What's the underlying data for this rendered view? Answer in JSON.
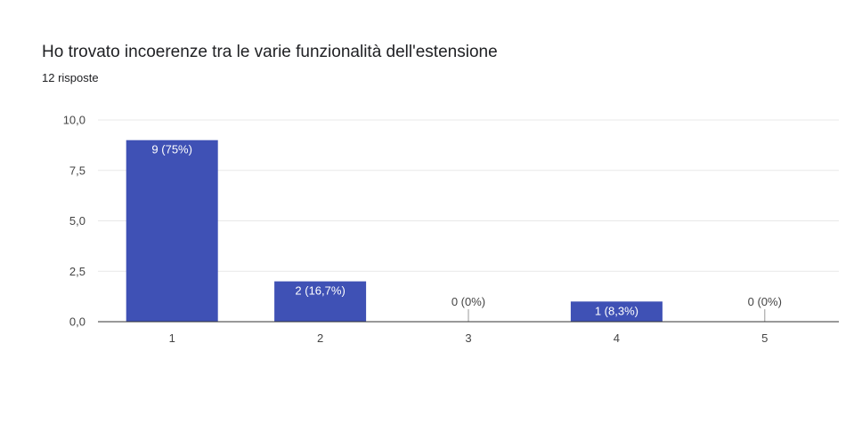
{
  "chart_data": {
    "type": "bar",
    "title": "Ho trovato incoerenze tra le varie funzionalità dell'estensione",
    "subtitle": "12 risposte",
    "categories": [
      "1",
      "2",
      "3",
      "4",
      "5"
    ],
    "values": [
      9,
      2,
      0,
      1,
      0
    ],
    "data_labels": [
      "9 (75%)",
      "2 (16,7%)",
      "0 (0%)",
      "1 (8,3%)",
      "0 (0%)"
    ],
    "y_ticks": [
      "0,0",
      "2,5",
      "5,0",
      "7,5",
      "10,0"
    ],
    "ylim": [
      0,
      10
    ],
    "grid": true,
    "legend": "none",
    "colors": {
      "bar": "#3f51b5",
      "grid": "#e8e8e8",
      "axis": "#333333",
      "zero_tick": "#999999"
    }
  }
}
